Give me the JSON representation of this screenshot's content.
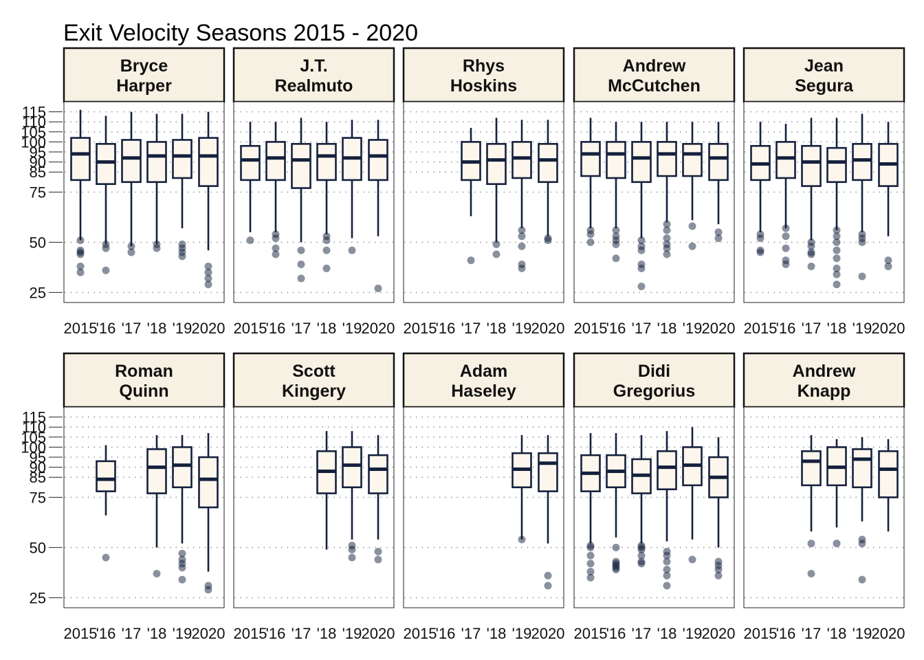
{
  "title": "Exit Velocity Seasons 2015 - 2020",
  "colors": {
    "strip_fill": "#f7f1e3",
    "box_fill": "#fdf6ec",
    "box_stroke": "#14213d",
    "grid": "#999999",
    "outlier": "#14213d"
  },
  "chart_data": {
    "type": "box",
    "title": "Exit Velocity Seasons 2015 - 2020",
    "ylim": [
      20,
      120
    ],
    "y_ticks": [
      25,
      50,
      75,
      85,
      90,
      95,
      100,
      105,
      110,
      115
    ],
    "x_categories": [
      "2015",
      "'16",
      "'17",
      "'18",
      "'19",
      "2020"
    ],
    "x_tick_labels": [
      "2015",
      "'16",
      "'17",
      "'18",
      "'19",
      "2020"
    ],
    "grid": "dotted horizontal",
    "panels": [
      {
        "player": "Bryce\nHarper",
        "boxes": [
          {
            "year": "2015",
            "min": 51,
            "q1": 81,
            "median": 94,
            "q3": 102,
            "max": 116,
            "outliers": [
              51,
              46,
              45,
              44,
              38,
              35
            ]
          },
          {
            "year": "'16",
            "min": 49,
            "q1": 79,
            "median": 90,
            "q3": 99,
            "max": 113,
            "outliers": [
              49,
              47,
              36
            ]
          },
          {
            "year": "'17",
            "min": 48,
            "q1": 80,
            "median": 92,
            "q3": 101,
            "max": 115,
            "outliers": [
              48,
              45
            ]
          },
          {
            "year": "'18",
            "min": 49,
            "q1": 80,
            "median": 93,
            "q3": 100,
            "max": 114,
            "outliers": [
              49,
              47
            ]
          },
          {
            "year": "'19",
            "min": 57,
            "q1": 82,
            "median": 93,
            "q3": 101,
            "max": 114,
            "outliers": [
              49,
              47,
              45,
              43
            ]
          },
          {
            "year": "2020",
            "min": 46,
            "q1": 78,
            "median": 93,
            "q3": 102,
            "max": 115,
            "outliers": [
              38,
              35,
              32,
              29
            ]
          }
        ]
      },
      {
        "player": "J.T.\nRealmuto",
        "boxes": [
          {
            "year": "2015",
            "min": 55,
            "q1": 81,
            "median": 91,
            "q3": 98,
            "max": 110,
            "outliers": [
              51
            ]
          },
          {
            "year": "'16",
            "min": 55,
            "q1": 81,
            "median": 92,
            "q3": 100,
            "max": 110,
            "outliers": [
              54,
              52,
              47,
              44
            ]
          },
          {
            "year": "'17",
            "min": 50,
            "q1": 77,
            "median": 91,
            "q3": 99,
            "max": 112,
            "outliers": [
              46,
              39,
              32
            ]
          },
          {
            "year": "'18",
            "min": 54,
            "q1": 81,
            "median": 93,
            "q3": 99,
            "max": 110,
            "outliers": [
              53,
              51,
              46,
              37
            ]
          },
          {
            "year": "'19",
            "min": 52,
            "q1": 81,
            "median": 92,
            "q3": 102,
            "max": 111,
            "outliers": [
              46
            ]
          },
          {
            "year": "2020",
            "min": 53,
            "q1": 81,
            "median": 93,
            "q3": 101,
            "max": 111,
            "outliers": [
              27
            ]
          }
        ]
      },
      {
        "player": "Rhys\nHoskins",
        "boxes": [
          {
            "year": "2015"
          },
          {
            "year": "'16"
          },
          {
            "year": "'17",
            "min": 63,
            "q1": 81,
            "median": 90,
            "q3": 100,
            "max": 107,
            "outliers": [
              41
            ]
          },
          {
            "year": "'18",
            "min": 50,
            "q1": 79,
            "median": 91,
            "q3": 99,
            "max": 112,
            "outliers": [
              49,
              44
            ]
          },
          {
            "year": "'19",
            "min": 57,
            "q1": 82,
            "median": 92,
            "q3": 100,
            "max": 111,
            "outliers": [
              56,
              53,
              48,
              39,
              37
            ]
          },
          {
            "year": "2020",
            "min": 53,
            "q1": 80,
            "median": 91,
            "q3": 99,
            "max": 111,
            "outliers": [
              52,
              51
            ]
          }
        ]
      },
      {
        "player": "Andrew\nMcCutchen",
        "boxes": [
          {
            "year": "2015",
            "min": 57,
            "q1": 83,
            "median": 94,
            "q3": 100,
            "max": 112,
            "outliers": [
              56,
              54,
              50
            ]
          },
          {
            "year": "'16",
            "min": 57,
            "q1": 82,
            "median": 94,
            "q3": 100,
            "max": 110,
            "outliers": [
              56,
              53,
              51,
              49,
              42
            ]
          },
          {
            "year": "'17",
            "min": 52,
            "q1": 80,
            "median": 92,
            "q3": 100,
            "max": 110,
            "outliers": [
              51,
              48,
              46,
              39,
              37,
              28
            ]
          },
          {
            "year": "'18",
            "min": 60,
            "q1": 83,
            "median": 94,
            "q3": 100,
            "max": 110,
            "outliers": [
              59,
              56,
              52,
              49,
              47,
              44
            ]
          },
          {
            "year": "'19",
            "min": 61,
            "q1": 83,
            "median": 94,
            "q3": 99,
            "max": 110,
            "outliers": [
              58,
              48
            ]
          },
          {
            "year": "2020",
            "min": 59,
            "q1": 81,
            "median": 92,
            "q3": 99,
            "max": 110,
            "outliers": [
              55,
              52
            ]
          }
        ]
      },
      {
        "player": "Jean\nSegura",
        "boxes": [
          {
            "year": "2015",
            "min": 55,
            "q1": 81,
            "median": 89,
            "q3": 98,
            "max": 110,
            "outliers": [
              54,
              52,
              46,
              45
            ]
          },
          {
            "year": "'16",
            "min": 57,
            "q1": 82,
            "median": 92,
            "q3": 100,
            "max": 109,
            "outliers": [
              57,
              53,
              47,
              41,
              39
            ]
          },
          {
            "year": "'17",
            "min": 51,
            "q1": 78,
            "median": 90,
            "q3": 98,
            "max": 112,
            "outliers": [
              50,
              48,
              45,
              44,
              38
            ]
          },
          {
            "year": "'18",
            "min": 56,
            "q1": 80,
            "median": 90,
            "q3": 97,
            "max": 112,
            "outliers": [
              56,
              53,
              50,
              46,
              42,
              37,
              34,
              29
            ]
          },
          {
            "year": "'19",
            "min": 55,
            "q1": 81,
            "median": 91,
            "q3": 99,
            "max": 114,
            "outliers": [
              54,
              52,
              50,
              33
            ]
          },
          {
            "year": "2020",
            "min": 53,
            "q1": 78,
            "median": 89,
            "q3": 99,
            "max": 110,
            "outliers": [
              41,
              38
            ]
          }
        ]
      },
      {
        "player": "Roman\nQuinn",
        "boxes": [
          {
            "year": "2015"
          },
          {
            "year": "'16",
            "min": 66,
            "q1": 78,
            "median": 84,
            "q3": 93,
            "max": 101,
            "outliers": [
              45
            ]
          },
          {
            "year": "'17"
          },
          {
            "year": "'18",
            "min": 50,
            "q1": 77,
            "median": 90,
            "q3": 99,
            "max": 106,
            "outliers": [
              37
            ]
          },
          {
            "year": "'19",
            "min": 52,
            "q1": 80,
            "median": 91,
            "q3": 100,
            "max": 106,
            "outliers": [
              47,
              44,
              42,
              40,
              34
            ]
          },
          {
            "year": "2020",
            "min": 38,
            "q1": 70,
            "median": 84,
            "q3": 95,
            "max": 107,
            "outliers": [
              31,
              29
            ]
          }
        ]
      },
      {
        "player": "Scott\nKingery",
        "boxes": [
          {
            "year": "2015"
          },
          {
            "year": "'16"
          },
          {
            "year": "'17"
          },
          {
            "year": "'18",
            "min": 49,
            "q1": 77,
            "median": 88,
            "q3": 98,
            "max": 108,
            "outliers": []
          },
          {
            "year": "'19",
            "min": 54,
            "q1": 80,
            "median": 91,
            "q3": 100,
            "max": 108,
            "outliers": [
              51,
              49,
              45
            ]
          },
          {
            "year": "2020",
            "min": 54,
            "q1": 77,
            "median": 89,
            "q3": 96,
            "max": 106,
            "outliers": [
              48,
              44
            ]
          }
        ]
      },
      {
        "player": "Adam\nHaseley",
        "boxes": [
          {
            "year": "2015"
          },
          {
            "year": "'16"
          },
          {
            "year": "'17"
          },
          {
            "year": "'18"
          },
          {
            "year": "'19",
            "min": 54,
            "q1": 80,
            "median": 89,
            "q3": 97,
            "max": 106,
            "outliers": [
              54
            ]
          },
          {
            "year": "2020",
            "min": 52,
            "q1": 78,
            "median": 92,
            "q3": 97,
            "max": 106,
            "outliers": [
              36,
              31
            ]
          }
        ]
      },
      {
        "player": "Didi\nGregorius",
        "boxes": [
          {
            "year": "2015",
            "min": 52,
            "q1": 78,
            "median": 87,
            "q3": 96,
            "max": 107,
            "outliers": [
              51,
              50,
              46,
              42,
              38,
              35
            ]
          },
          {
            "year": "'16",
            "min": 55,
            "q1": 80,
            "median": 88,
            "q3": 96,
            "max": 107,
            "outliers": [
              50,
              43,
              42,
              41,
              40,
              39
            ]
          },
          {
            "year": "'17",
            "min": 52,
            "q1": 77,
            "median": 86,
            "q3": 94,
            "max": 106,
            "outliers": [
              51,
              50,
              49,
              46,
              43,
              42
            ]
          },
          {
            "year": "'18",
            "min": 53,
            "q1": 79,
            "median": 90,
            "q3": 98,
            "max": 108,
            "outliers": [
              48,
              46,
              43,
              39,
              36,
              31
            ]
          },
          {
            "year": "'19",
            "min": 54,
            "q1": 81,
            "median": 91,
            "q3": 100,
            "max": 110,
            "outliers": [
              44
            ]
          },
          {
            "year": "2020",
            "min": 50,
            "q1": 75,
            "median": 85,
            "q3": 95,
            "max": 105,
            "outliers": [
              43,
              41,
              39,
              36
            ]
          }
        ]
      },
      {
        "player": "Andrew\nKnapp",
        "boxes": [
          {
            "year": "2015"
          },
          {
            "year": "'16"
          },
          {
            "year": "'17",
            "min": 58,
            "q1": 81,
            "median": 93,
            "q3": 98,
            "max": 106,
            "outliers": [
              52,
              37
            ]
          },
          {
            "year": "'18",
            "min": 60,
            "q1": 81,
            "median": 90,
            "q3": 100,
            "max": 104,
            "outliers": [
              52
            ]
          },
          {
            "year": "'19",
            "min": 63,
            "q1": 80,
            "median": 94,
            "q3": 99,
            "max": 105,
            "outliers": [
              54,
              52,
              34
            ]
          },
          {
            "year": "2020",
            "min": 58,
            "q1": 75,
            "median": 89,
            "q3": 98,
            "max": 104,
            "outliers": []
          }
        ]
      }
    ]
  }
}
